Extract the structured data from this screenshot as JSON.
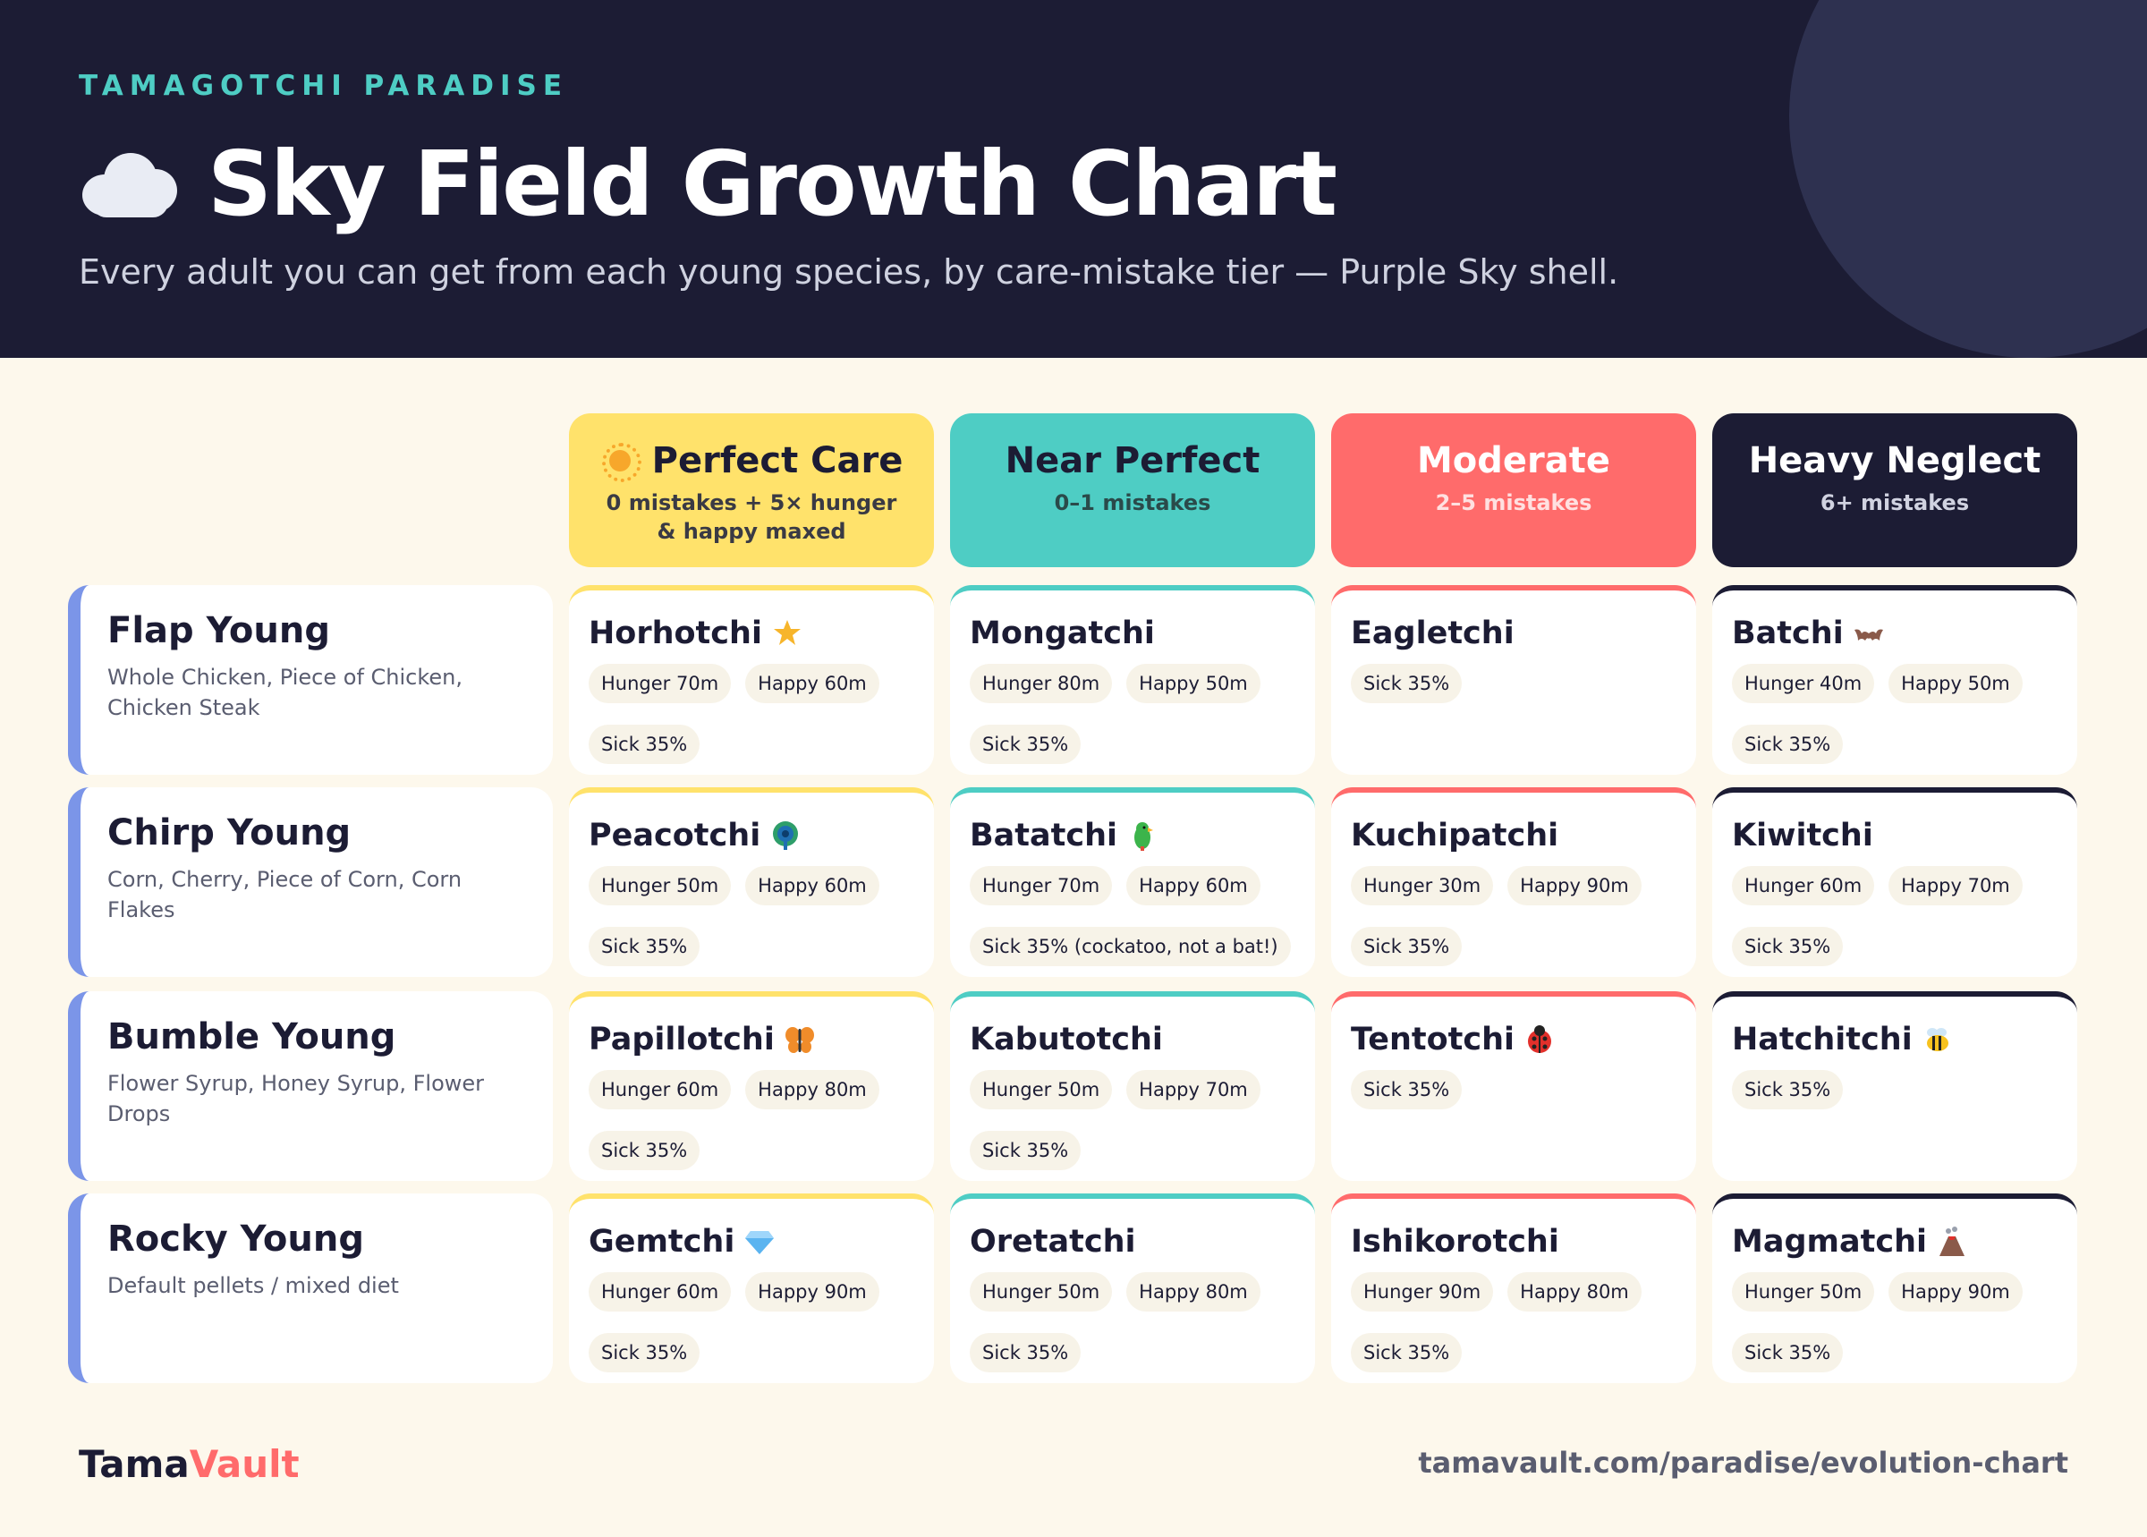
{
  "header": {
    "eyebrow": "TAMAGOTCHI PARADISE",
    "title": "Sky Field Growth Chart",
    "title_icon": "cloud-icon",
    "subtitle": "Every adult you can get from each young species, by care-mistake tier — Purple Sky shell."
  },
  "columns": [
    {
      "title": "Perfect Care",
      "sub": "0 mistakes + 5× hunger & happy maxed",
      "icon": "sun-icon",
      "bg": "#ffe26b",
      "fg": "#1c1c34",
      "subfg": "#3a3a44",
      "accent": "#ffe26b"
    },
    {
      "title": "Near Perfect",
      "sub": "0–1 mistakes",
      "bg": "#4ecdc4",
      "fg": "#1c1c34",
      "subfg": "#2a4a4a",
      "accent": "#4ecdc4"
    },
    {
      "title": "Moderate",
      "sub": "2–5 mistakes",
      "bg": "#ff6b6b",
      "fg": "#ffffff",
      "subfg": "#ffe0e0",
      "accent": "#ff6b6b"
    },
    {
      "title": "Heavy Neglect",
      "sub": "6+ mistakes",
      "bg": "#1c1c34",
      "fg": "#ffffff",
      "subfg": "#d0d2e0",
      "accent": "#1c1c34"
    }
  ],
  "rows": [
    {
      "title": "Flap Young",
      "foods": "Whole Chicken, Piece of Chicken, Chicken Steak",
      "cells": [
        {
          "name": "Horhotchi",
          "icon": "star-icon",
          "tags": [
            "Hunger 70m",
            "Happy 60m",
            "Sick 35%"
          ]
        },
        {
          "name": "Mongatchi",
          "tags": [
            "Hunger 80m",
            "Happy 50m",
            "Sick 35%"
          ]
        },
        {
          "name": "Eagletchi",
          "tags": [
            "Sick 35%"
          ]
        },
        {
          "name": "Batchi",
          "icon": "bat-icon",
          "tags": [
            "Hunger 40m",
            "Happy 50m",
            "Sick 35%"
          ]
        }
      ]
    },
    {
      "title": "Chirp Young",
      "foods": "Corn, Cherry, Piece of Corn, Corn Flakes",
      "cells": [
        {
          "name": "Peacotchi",
          "icon": "peacock-icon",
          "tags": [
            "Hunger 50m",
            "Happy 60m",
            "Sick 35%"
          ]
        },
        {
          "name": "Batatchi",
          "icon": "parrot-icon",
          "tags": [
            "Hunger 70m",
            "Happy 60m",
            "Sick 35% (cockatoo, not a bat!)"
          ]
        },
        {
          "name": "Kuchipatchi",
          "tags": [
            "Hunger 30m",
            "Happy 90m",
            "Sick 35%"
          ]
        },
        {
          "name": "Kiwitchi",
          "tags": [
            "Hunger 60m",
            "Happy 70m",
            "Sick 35%"
          ]
        }
      ]
    },
    {
      "title": "Bumble Young",
      "foods": "Flower Syrup, Honey Syrup, Flower Drops",
      "cells": [
        {
          "name": "Papillotchi",
          "icon": "butterfly-icon",
          "tags": [
            "Hunger 60m",
            "Happy 80m",
            "Sick 35%"
          ]
        },
        {
          "name": "Kabutotchi",
          "tags": [
            "Hunger 50m",
            "Happy 70m",
            "Sick 35%"
          ]
        },
        {
          "name": "Tentotchi",
          "icon": "ladybug-icon",
          "tags": [
            "Sick 35%"
          ]
        },
        {
          "name": "Hatchitchi",
          "icon": "bee-icon",
          "tags": [
            "Sick 35%"
          ]
        }
      ]
    },
    {
      "title": "Rocky Young",
      "foods": "Default pellets / mixed diet",
      "cells": [
        {
          "name": "Gemtchi",
          "icon": "gem-icon",
          "tags": [
            "Hunger 60m",
            "Happy 90m",
            "Sick 35%"
          ]
        },
        {
          "name": "Oretatchi",
          "tags": [
            "Hunger 50m",
            "Happy 80m",
            "Sick 35%"
          ]
        },
        {
          "name": "Ishikorotchi",
          "tags": [
            "Hunger 90m",
            "Happy 80m",
            "Sick 35%"
          ]
        },
        {
          "name": "Magmatchi",
          "icon": "volcano-icon",
          "tags": [
            "Hunger 50m",
            "Happy 90m",
            "Sick 35%"
          ]
        }
      ]
    }
  ],
  "footer": {
    "logo_part1": "Tama",
    "logo_part2": "Vault",
    "url": "tamavault.com/paradise/evolution-chart"
  }
}
